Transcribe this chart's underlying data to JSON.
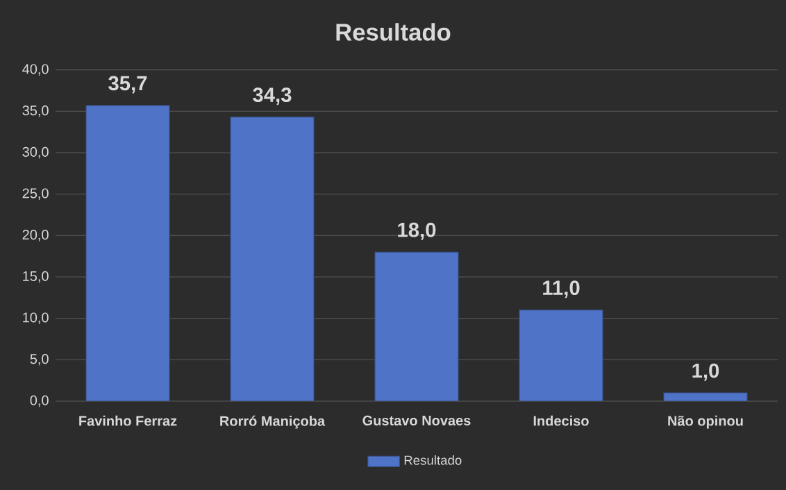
{
  "chart_data": {
    "type": "bar",
    "title": "Resultado",
    "categories": [
      "Favinho Ferraz",
      "Rorró Maniçoba",
      "Gustavo Novaes",
      "Indeciso",
      "Não opinou"
    ],
    "series": [
      {
        "name": "Resultado",
        "color": "#4f73c6",
        "values": [
          35.7,
          34.3,
          18.0,
          11.0,
          1.0
        ]
      }
    ],
    "value_labels": [
      "35,7",
      "34,3",
      "18,0",
      "11,0",
      "1,0"
    ],
    "ylim": [
      0,
      40
    ],
    "yticks": [
      {
        "value": 0,
        "label": "0,0"
      },
      {
        "value": 5,
        "label": "5,0"
      },
      {
        "value": 10,
        "label": "10,0"
      },
      {
        "value": 15,
        "label": "15,0"
      },
      {
        "value": 20,
        "label": "20,0"
      },
      {
        "value": 25,
        "label": "25,0"
      },
      {
        "value": 30,
        "label": "30,0"
      },
      {
        "value": 35,
        "label": "35,0"
      },
      {
        "value": 40,
        "label": "40,0"
      }
    ],
    "grid": "y",
    "legend": "bottom"
  }
}
